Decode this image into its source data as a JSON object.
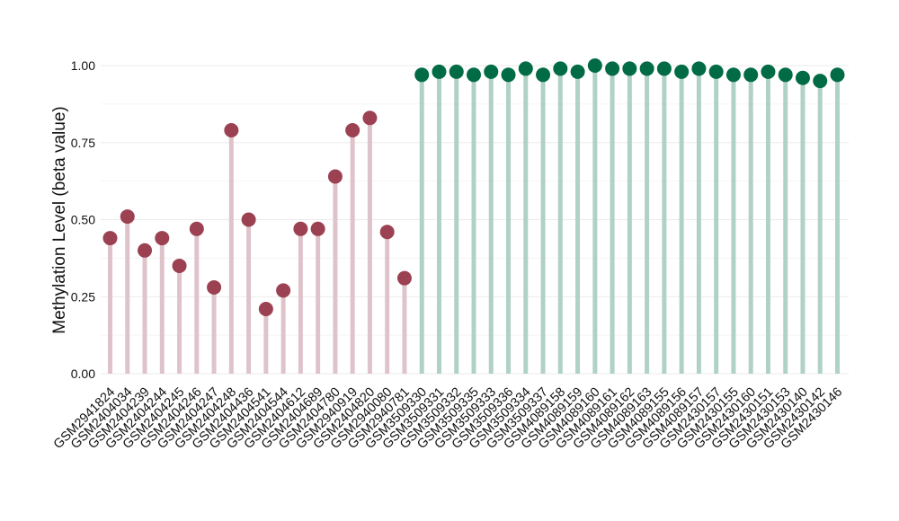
{
  "chart_data": {
    "type": "lollipop",
    "ylabel": "Methylation Level (beta value)",
    "xlabel": "",
    "ylim": [
      0,
      1
    ],
    "yticks": [
      "0.00",
      "0.25",
      "0.50",
      "0.75",
      "1.00"
    ],
    "grid": true,
    "legend": "none",
    "colors": {
      "group1_point": "#9b4152",
      "group1_stem": "#dfc3ca",
      "group2_point": "#006b45",
      "group2_stem": "#b0d1c5",
      "grid": "#ebebeb"
    },
    "categories": [
      "GSM2941824",
      "GSM2404034",
      "GSM2404239",
      "GSM2404244",
      "GSM2404245",
      "GSM2404246",
      "GSM2404247",
      "GSM2404248",
      "GSM2404436",
      "GSM2404541",
      "GSM2404544",
      "GSM2404612",
      "GSM2404689",
      "GSM2404780",
      "GSM2940919",
      "GSM2404820",
      "GSM2940080",
      "GSM2940781",
      "GSM3509330",
      "GSM3509331",
      "GSM3509332",
      "GSM3509335",
      "GSM3509333",
      "GSM3509336",
      "GSM3509334",
      "GSM3509337",
      "GSM4089158",
      "GSM4089159",
      "GSM4089160",
      "GSM4089161",
      "GSM4089162",
      "GSM4089163",
      "GSM4089155",
      "GSM4089156",
      "GSM4089157",
      "GSM2430157",
      "GSM2430155",
      "GSM2430160",
      "GSM2430151",
      "GSM2430153",
      "GSM2430140",
      "GSM2430142",
      "GSM2430146"
    ],
    "values": [
      0.44,
      0.51,
      0.4,
      0.44,
      0.35,
      0.47,
      0.28,
      0.79,
      0.5,
      0.21,
      0.27,
      0.47,
      0.47,
      0.64,
      0.79,
      0.83,
      0.46,
      0.31,
      0.97,
      0.98,
      0.98,
      0.97,
      0.98,
      0.97,
      0.99,
      0.97,
      0.99,
      0.98,
      1.0,
      0.99,
      0.99,
      0.99,
      0.99,
      0.98,
      0.99,
      0.98,
      0.97,
      0.97,
      0.98,
      0.97,
      0.96,
      0.95,
      0.97
    ],
    "groups": [
      1,
      1,
      1,
      1,
      1,
      1,
      1,
      1,
      1,
      1,
      1,
      1,
      1,
      1,
      1,
      1,
      1,
      1,
      2,
      2,
      2,
      2,
      2,
      2,
      2,
      2,
      2,
      2,
      2,
      2,
      2,
      2,
      2,
      2,
      2,
      2,
      2,
      2,
      2,
      2,
      2,
      2,
      2
    ]
  }
}
